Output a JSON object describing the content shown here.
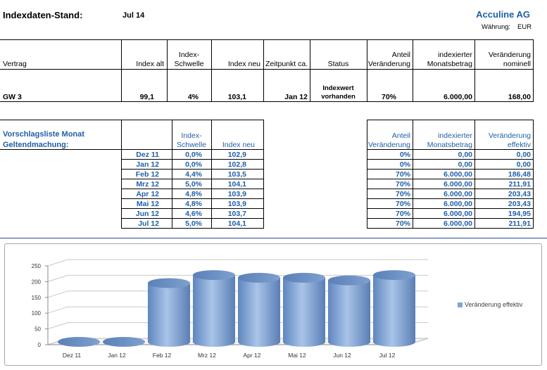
{
  "header": {
    "title": "Indexdaten-Stand:",
    "date": "Jul 14",
    "company": "Acculine AG",
    "currency_label": "Währung:",
    "currency": "EUR"
  },
  "contract_table": {
    "headers": {
      "vertrag": "Vertrag",
      "index_alt": "Index alt",
      "index_schwelle_1": "Index-",
      "index_schwelle_2": "Schwelle",
      "index_neu": "Index neu",
      "zeitpunkt": "Zeitpunkt ca.",
      "status": "Status",
      "anteil_1": "Anteil",
      "anteil_2": "Veränderung",
      "indexierter_1": "indexierter",
      "indexierter_2": "Monatsbetrag",
      "veraenderung_1": "Veränderung",
      "veraenderung_2": "nominell"
    },
    "row": {
      "vertrag": "GW 3",
      "index_alt": "99,1",
      "index_schwelle": "4%",
      "index_neu": "103,1",
      "zeitpunkt": "Jan 12",
      "status_1": "Indexwert",
      "status_2": "vorhanden",
      "anteil": "70%",
      "indexierter": "6.000,00",
      "veraenderung": "168,00"
    }
  },
  "proposal_table": {
    "title_1": "Vorschlagsliste Monat",
    "title_2": "Geltendmachung:",
    "headers": {
      "schwelle_1": "Index-",
      "schwelle_2": "Schwelle",
      "index_neu": "Index neu",
      "anteil_1": "Anteil",
      "anteil_2": "Veränderung",
      "indexierter_1": "indexierter",
      "indexierter_2": "Monatsbetrag",
      "veraenderung_1": "Veränderung",
      "veraenderung_2": "effektiv"
    },
    "rows": [
      {
        "month": "Dez 11",
        "schwelle": "0,0%",
        "index": "102,9",
        "anteil": "0%",
        "betrag": "0,00",
        "effektiv": "0,00"
      },
      {
        "month": "Jan 12",
        "schwelle": "0,0%",
        "index": "102,8",
        "anteil": "0%",
        "betrag": "0,00",
        "effektiv": "0,00"
      },
      {
        "month": "Feb 12",
        "schwelle": "4,4%",
        "index": "103,5",
        "anteil": "70%",
        "betrag": "6.000,00",
        "effektiv": "186,48"
      },
      {
        "month": "Mrz 12",
        "schwelle": "5,0%",
        "index": "104,1",
        "anteil": "70%",
        "betrag": "6.000,00",
        "effektiv": "211,91"
      },
      {
        "month": "Apr 12",
        "schwelle": "4,8%",
        "index": "103,9",
        "anteil": "70%",
        "betrag": "6.000,00",
        "effektiv": "203,43"
      },
      {
        "month": "Mai 12",
        "schwelle": "4,8%",
        "index": "103,9",
        "anteil": "70%",
        "betrag": "6.000,00",
        "effektiv": "203,43"
      },
      {
        "month": "Jun 12",
        "schwelle": "4,6%",
        "index": "103,7",
        "anteil": "70%",
        "betrag": "6.000,00",
        "effektiv": "194,95"
      },
      {
        "month": "Jul 12",
        "schwelle": "5,0%",
        "index": "104,1",
        "anteil": "70%",
        "betrag": "6.000,00",
        "effektiv": "211,91"
      }
    ]
  },
  "colors": {
    "accent_blue": "#1f5fa8",
    "bar_blue": "#7fa5d8"
  },
  "chart_data": {
    "type": "bar",
    "categories": [
      "Dez 11",
      "Jan 12",
      "Feb 12",
      "Mrz 12",
      "Apr 12",
      "Mai 12",
      "Jun 12",
      "Jul 12"
    ],
    "series": [
      {
        "name": "Veränderung effektiv",
        "values": [
          0,
          0,
          186.48,
          211.91,
          203.43,
          203.43,
          194.95,
          211.91
        ]
      }
    ],
    "y_ticks": [
      "0",
      "50",
      "100",
      "150",
      "200",
      "250"
    ],
    "ylim": [
      0,
      250
    ],
    "legend_position": "right",
    "grid": true,
    "style": "3d-cylinder"
  }
}
